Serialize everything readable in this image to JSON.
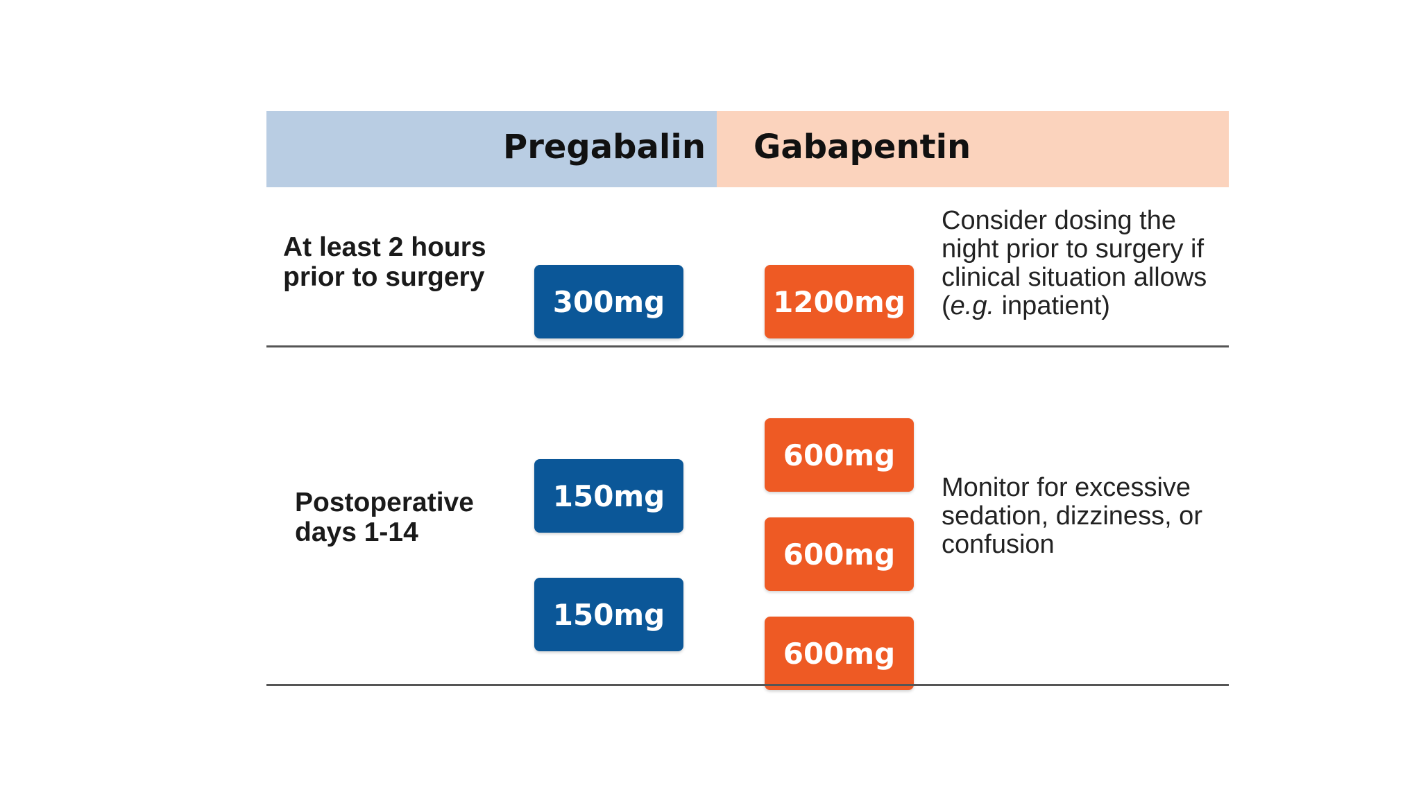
{
  "header": {
    "pregabalin": "Pregabalin",
    "gabapentin": "Gabapentin"
  },
  "colors": {
    "pregabalin_header": "#b9cde3",
    "gabapentin_header": "#fbd3bd",
    "pregabalin_dose": "#0b5798",
    "gabapentin_dose": "#ee5a24"
  },
  "rows": [
    {
      "label": "At least 2 hours\nprior to surgery",
      "pregabalin_doses": [
        "300mg"
      ],
      "gabapentin_doses": [
        "1200mg"
      ],
      "note_before": "Consider dosing the night prior to surgery if clinical situation allows (",
      "note_italic": "e.g.",
      "note_after": " inpatient)"
    },
    {
      "label": "Postoperative\ndays 1-14",
      "pregabalin_doses": [
        "150mg",
        "150mg"
      ],
      "gabapentin_doses": [
        "600mg",
        "600mg",
        "600mg"
      ],
      "note": "Monitor for excessive sedation, dizziness, or confusion"
    }
  ]
}
